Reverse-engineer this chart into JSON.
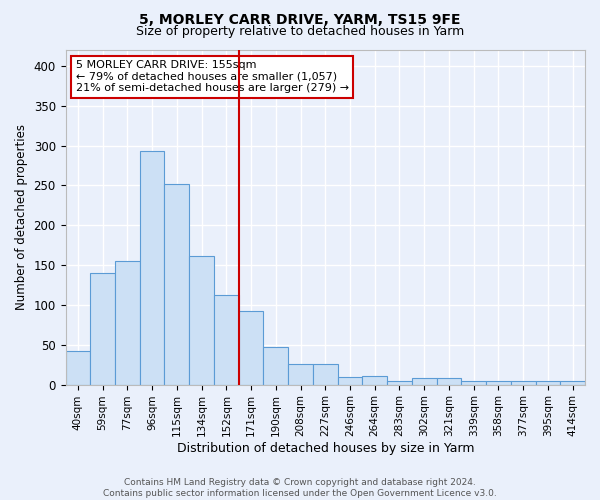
{
  "title": "5, MORLEY CARR DRIVE, YARM, TS15 9FE",
  "subtitle": "Size of property relative to detached houses in Yarm",
  "xlabel": "Distribution of detached houses by size in Yarm",
  "ylabel": "Number of detached properties",
  "bin_labels": [
    "40sqm",
    "59sqm",
    "77sqm",
    "96sqm",
    "115sqm",
    "134sqm",
    "152sqm",
    "171sqm",
    "190sqm",
    "208sqm",
    "227sqm",
    "246sqm",
    "264sqm",
    "283sqm",
    "302sqm",
    "321sqm",
    "339sqm",
    "358sqm",
    "377sqm",
    "395sqm",
    "414sqm"
  ],
  "bar_heights": [
    42,
    140,
    155,
    293,
    252,
    162,
    112,
    92,
    47,
    26,
    26,
    9,
    11,
    5,
    8,
    8,
    4,
    4,
    4,
    4,
    4
  ],
  "bar_color": "#cce0f5",
  "bar_edgecolor": "#5b9bd5",
  "vline_x_index": 6,
  "vline_color": "#cc0000",
  "annotation_text": "5 MORLEY CARR DRIVE: 155sqm\n← 79% of detached houses are smaller (1,057)\n21% of semi-detached houses are larger (279) →",
  "annotation_box_color": "#ffffff",
  "annotation_box_edgecolor": "#cc0000",
  "footer_text": "Contains HM Land Registry data © Crown copyright and database right 2024.\nContains public sector information licensed under the Open Government Licence v3.0.",
  "ylim": [
    0,
    420
  ],
  "yticks": [
    0,
    50,
    100,
    150,
    200,
    250,
    300,
    350,
    400
  ],
  "background_color": "#eaf0fb",
  "grid_color": "#ffffff",
  "title_fontsize": 10,
  "subtitle_fontsize": 9,
  "xlabel_fontsize": 9,
  "ylabel_fontsize": 8.5,
  "tick_fontsize": 7.5,
  "annotation_fontsize": 8,
  "footer_fontsize": 6.5
}
